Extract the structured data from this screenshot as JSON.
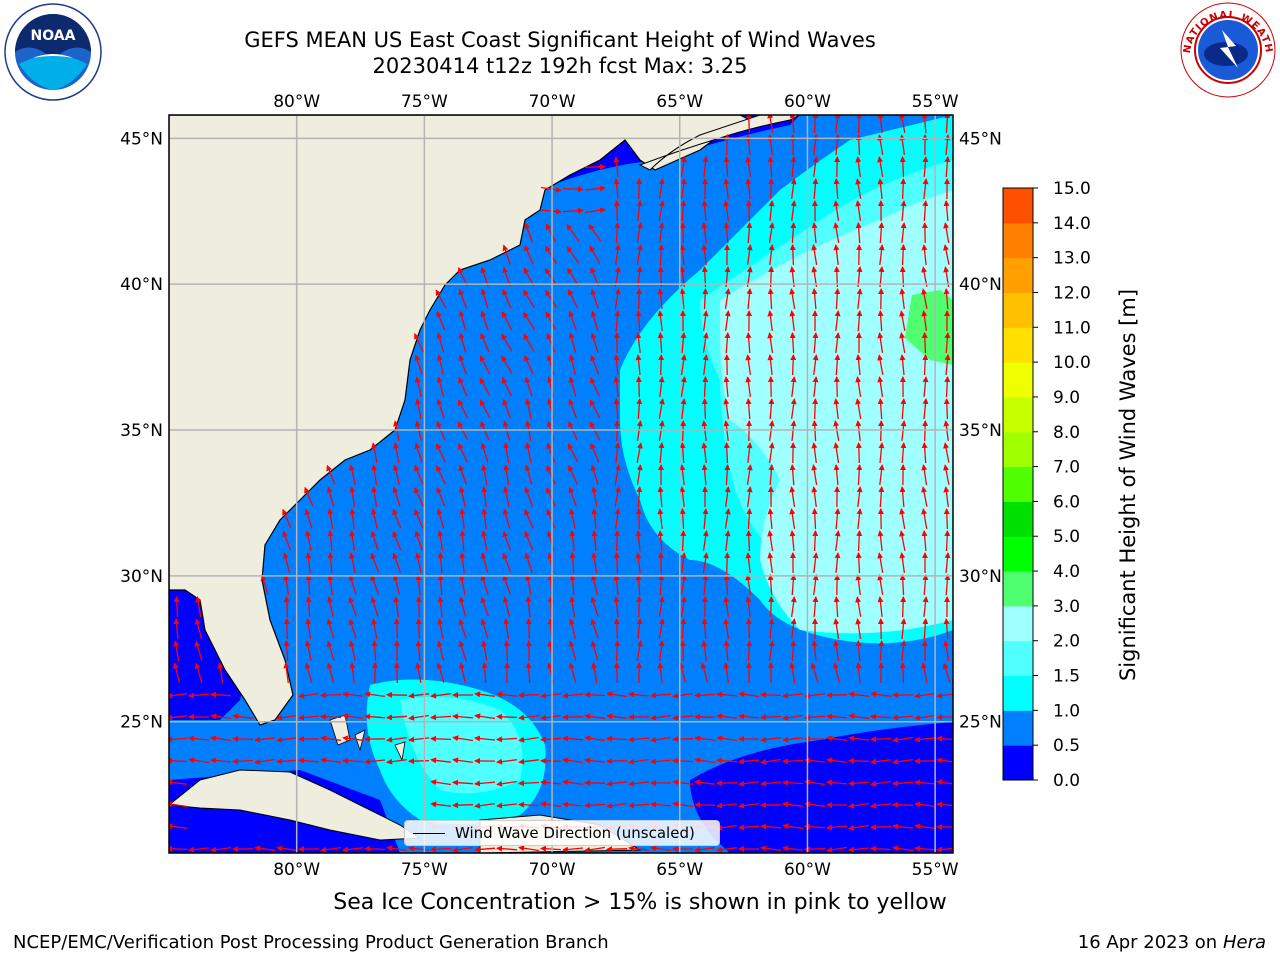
{
  "header": {
    "title_line1": "GEFS MEAN US East Coast Significant Height of Wind Waves",
    "title_line2": "20230414 t12z 192h fcst   Max: 3.25"
  },
  "logos": {
    "left": "NOAA",
    "right": "NATIONAL WEATHER SERVICE"
  },
  "map": {
    "lon_labels": [
      "80°W",
      "75°W",
      "70°W",
      "65°W",
      "60°W",
      "55°W"
    ],
    "lat_labels": [
      "45°N",
      "40°N",
      "35°N",
      "30°N",
      "25°N"
    ],
    "lon_values": [
      -80,
      -75,
      -70,
      -65,
      -60,
      -55
    ],
    "lat_values": [
      45,
      40,
      35,
      30,
      25
    ],
    "extent": {
      "lon_min": -85,
      "lon_max": -54.3,
      "lat_min": 20.5,
      "lat_max": 45.8
    },
    "colors": {
      "land": "#efedde",
      "wave_0_05": "#0000ff",
      "wave_05_10": "#0080ff",
      "wave_10_15": "#00ffff",
      "wave_15_20": "#50ffff",
      "wave_20_30": "#a0ffff",
      "wave_30_40": "#50ff70",
      "arrow": "#ff0000",
      "grid": "#b4b4b4"
    },
    "legend_label": "Wind Wave Direction (unscaled)"
  },
  "colorbar": {
    "title": "Significant Height of Wind Waves [m]",
    "ticks": [
      "0.0",
      "0.5",
      "1.0",
      "1.5",
      "2.0",
      "3.0",
      "4.0",
      "5.0",
      "6.0",
      "7.0",
      "8.0",
      "9.0",
      "10.0",
      "11.0",
      "12.0",
      "13.0",
      "14.0",
      "15.0"
    ],
    "colors": [
      "#0000ff",
      "#0080ff",
      "#00ffff",
      "#50ffff",
      "#a0ffff",
      "#50ff70",
      "#00ff00",
      "#00e000",
      "#50ff00",
      "#a0ff00",
      "#c8ff00",
      "#f0ff00",
      "#ffe000",
      "#ffc000",
      "#ffa000",
      "#ff8000",
      "#ff5000",
      "#ff2000",
      "#ff0000"
    ]
  },
  "notes": {
    "sea_ice": "Sea Ice Concentration > 15% is shown in pink to yellow",
    "footer_left": "NCEP/EMC/Verification Post Processing Product Generation Branch",
    "footer_date": "16 Apr 2023 on ",
    "footer_machine": "Hera"
  }
}
